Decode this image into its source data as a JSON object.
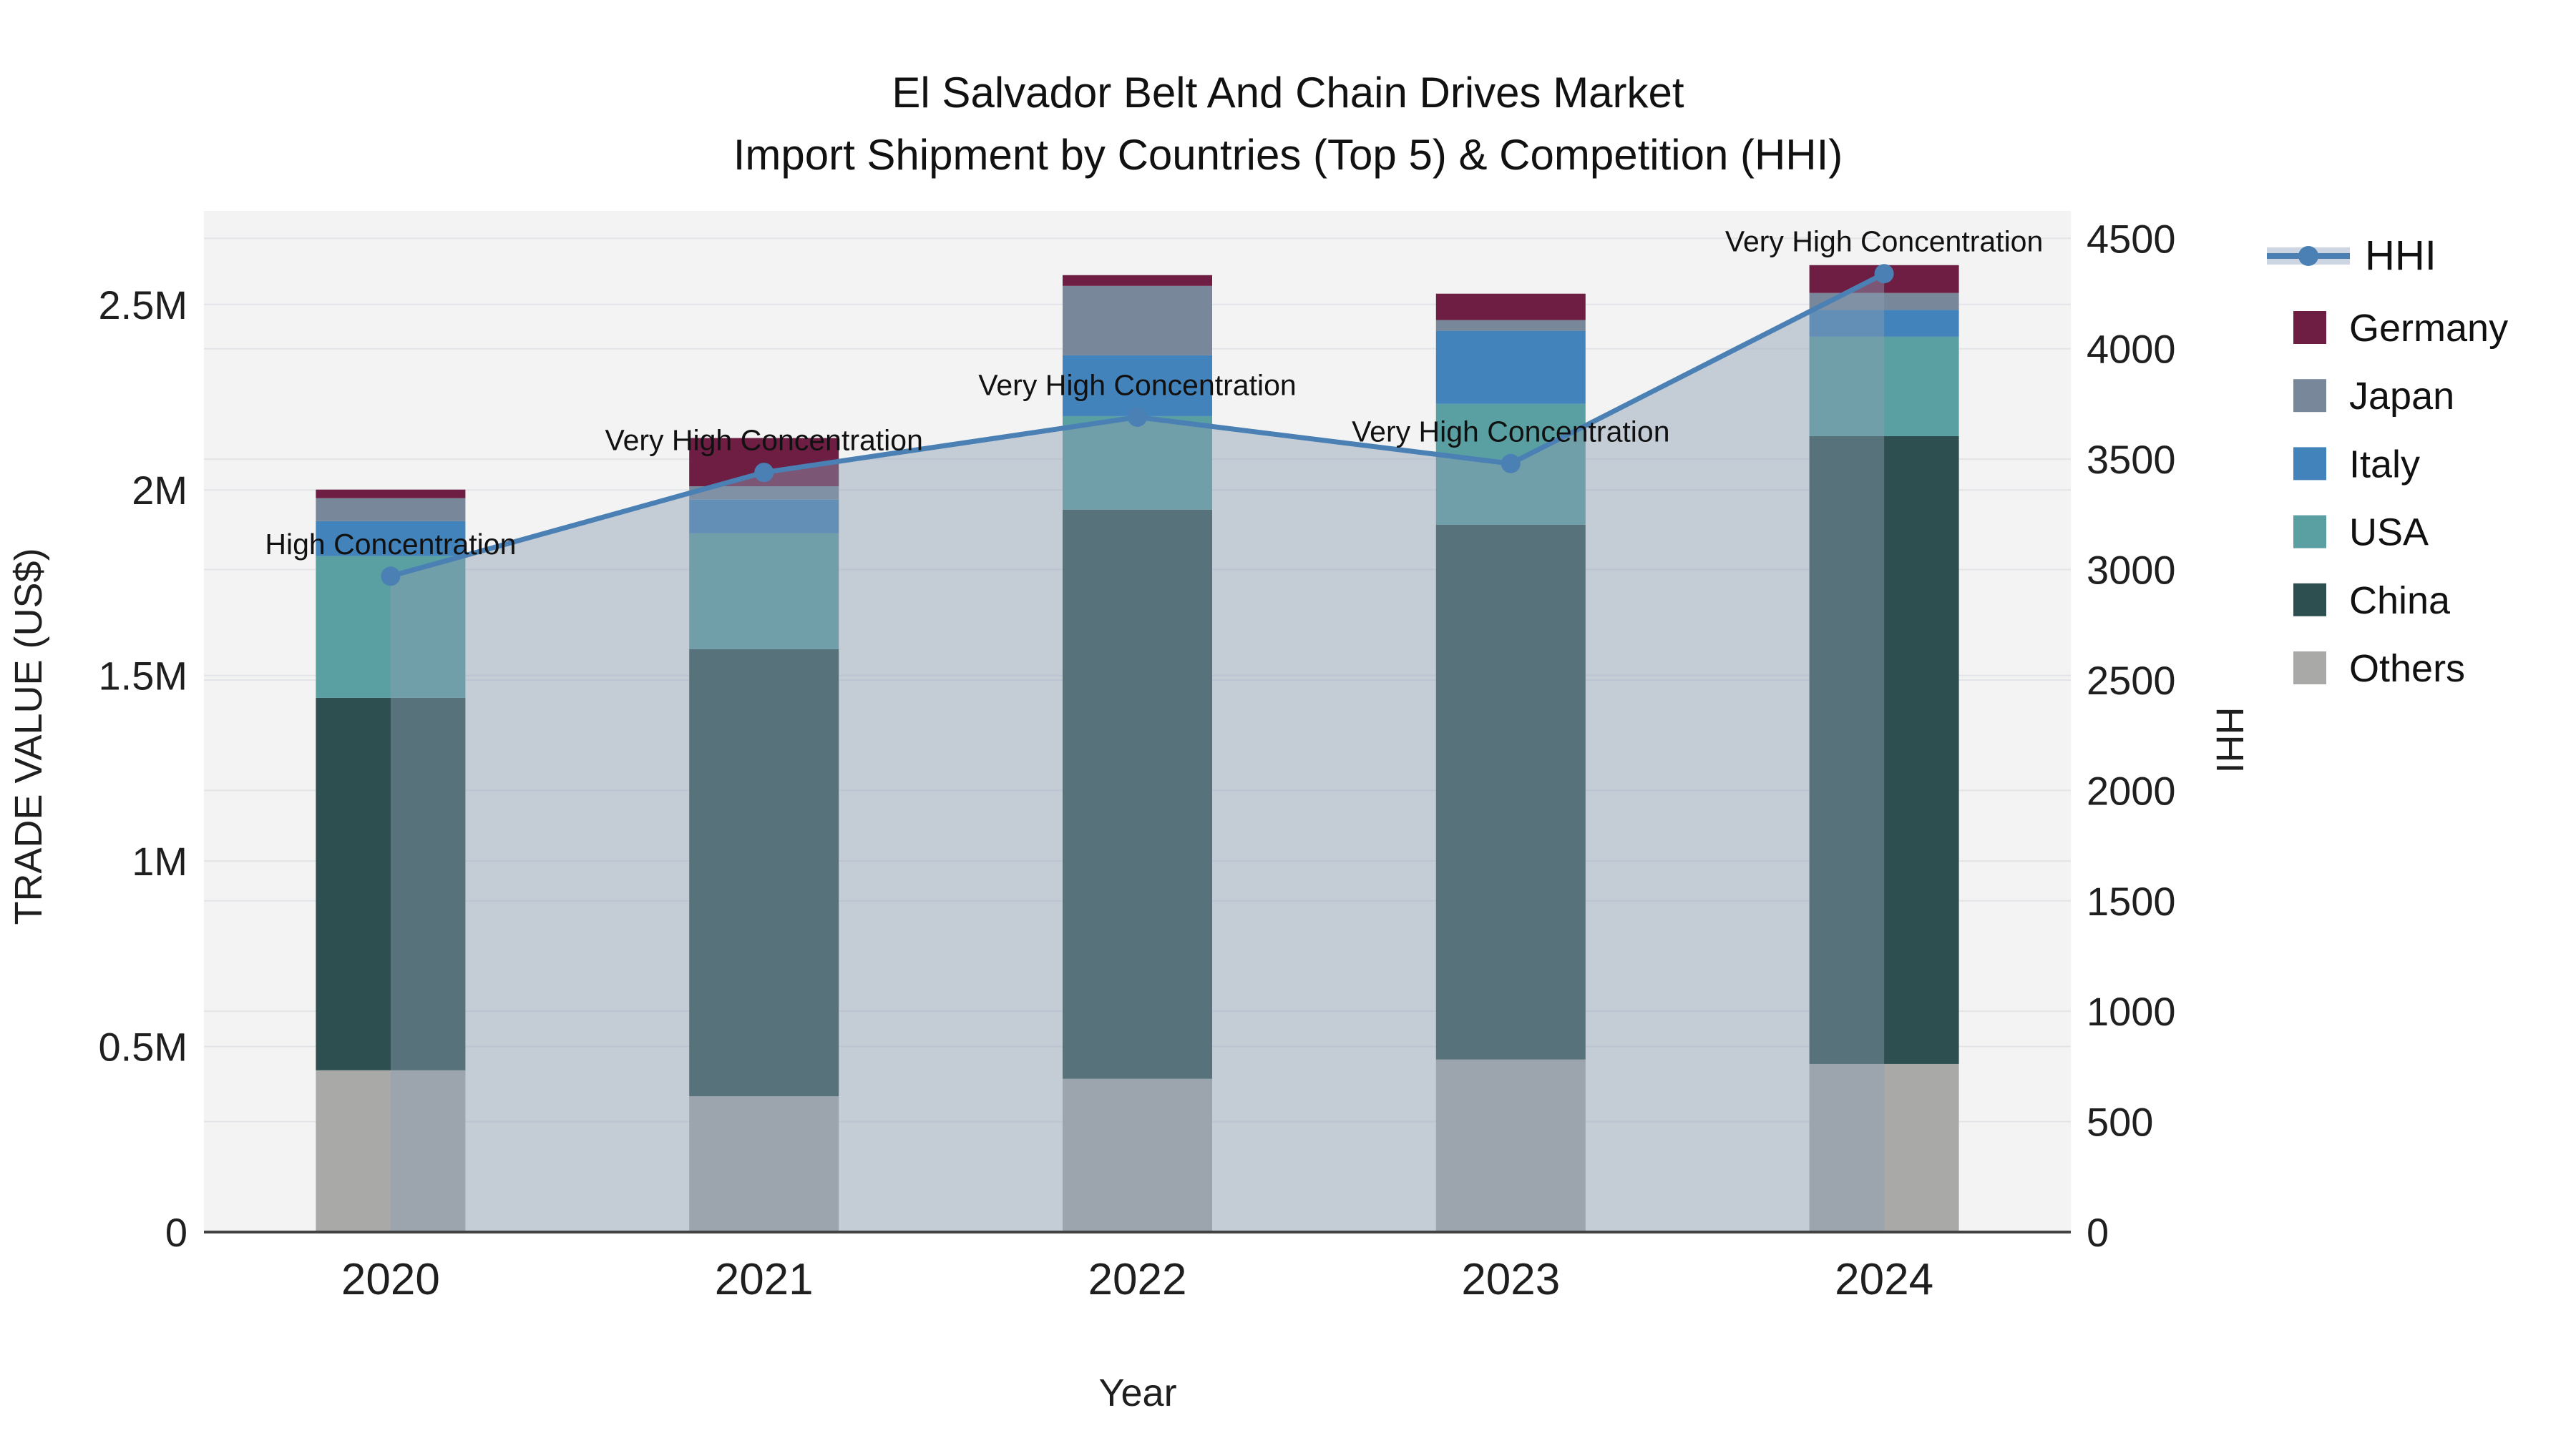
{
  "title": {
    "line1": "El Salvador Belt And Chain Drives Market",
    "line2": "Import Shipment by Countries (Top 5) & Competition (HHI)"
  },
  "axes": {
    "x": {
      "title": "Year",
      "categories": [
        "2020",
        "2021",
        "2022",
        "2023",
        "2024"
      ]
    },
    "y_left": {
      "title": "TRADE VALUE (US$)",
      "tick_values": [
        0,
        0.5,
        1,
        1.5,
        2,
        2.5
      ],
      "tick_labels": [
        "0",
        "0.5M",
        "1M",
        "1.5M",
        "2M",
        "2.5M"
      ],
      "range_max": 2.752,
      "unit": "US$ millions"
    },
    "y_right": {
      "title": "HHI",
      "tick_values": [
        0,
        500,
        1000,
        1500,
        2000,
        2500,
        3000,
        3500,
        4000,
        4500
      ],
      "tick_labels": [
        "0",
        "500",
        "1000",
        "1500",
        "2000",
        "2500",
        "3000",
        "3500",
        "4000",
        "4500"
      ],
      "range_max": 4624
    }
  },
  "colors": {
    "plot_background": "#f3f3f3",
    "gridline": "#e2e4e7",
    "axis_line": "#424242",
    "hhi_line": "#4a80b4",
    "hhi_area_fill": "rgba(140,158,180,0.45)",
    "legend_band": "#ccd5e1"
  },
  "legend": {
    "items": [
      {
        "label": "HHI",
        "type": "line",
        "color": "#4a80b4"
      },
      {
        "label": "Germany",
        "type": "swatch",
        "color": "#6e1e42"
      },
      {
        "label": "Japan",
        "type": "swatch",
        "color": "#78889a"
      },
      {
        "label": "Italy",
        "type": "swatch",
        "color": "#4383bb"
      },
      {
        "label": "USA",
        "type": "swatch",
        "color": "#5aa0a2"
      },
      {
        "label": "China",
        "type": "swatch",
        "color": "#2e4f4f"
      },
      {
        "label": "Others",
        "type": "swatch",
        "color": "#a9aaa8"
      }
    ]
  },
  "chart_data": {
    "type": "bar",
    "subtype": "stacked-bars-with-line-overlay",
    "categories": [
      "2020",
      "2021",
      "2022",
      "2023",
      "2024"
    ],
    "bar_unit": "US$ millions (trade value, left axis)",
    "series": [
      {
        "name": "Germany",
        "color": "#6e1e42",
        "values": [
          0.023,
          0.13,
          0.029,
          0.071,
          0.075
        ]
      },
      {
        "name": "Japan",
        "color": "#78889a",
        "values": [
          0.062,
          0.036,
          0.187,
          0.029,
          0.046
        ]
      },
      {
        "name": "Italy",
        "color": "#4383bb",
        "values": [
          0.094,
          0.091,
          0.164,
          0.197,
          0.072
        ]
      },
      {
        "name": "USA",
        "color": "#5aa0a2",
        "values": [
          0.382,
          0.312,
          0.252,
          0.326,
          0.268
        ]
      },
      {
        "name": "China",
        "color": "#2e4f4f",
        "values": [
          1.004,
          1.205,
          1.534,
          1.441,
          1.692
        ]
      },
      {
        "name": "Others",
        "color": "#a9aaa8",
        "values": [
          0.436,
          0.366,
          0.413,
          0.465,
          0.453
        ]
      }
    ],
    "totals": [
      2.001,
      2.14,
      2.579,
      2.529,
      2.606
    ],
    "line_series": {
      "name": "HHI",
      "axis": "right",
      "values": [
        2970,
        3440,
        3690,
        3480,
        4340
      ],
      "color": "#4a80b4",
      "area_fill": "rgba(140,158,180,0.45)"
    },
    "annotations": [
      "High Concentration",
      "Very High Concentration",
      "Very High Concentration",
      "Very High Concentration",
      "Very High Concentration"
    ],
    "legend_position": "right",
    "grid": true,
    "stack_order_bottom_to_top": [
      "Others",
      "China",
      "USA",
      "Italy",
      "Japan",
      "Germany"
    ]
  }
}
